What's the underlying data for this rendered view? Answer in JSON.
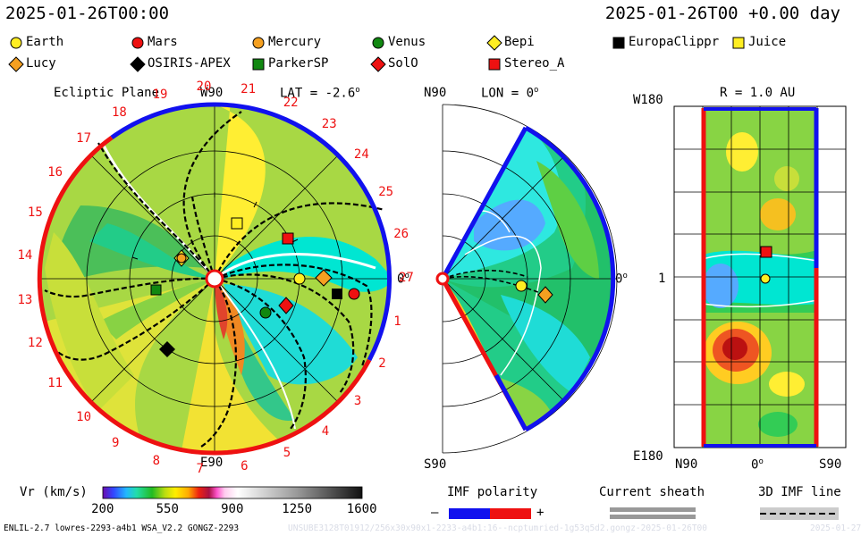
{
  "header": {
    "datetime": "2025-01-26T00:00",
    "relative": "2025-01-26T00 +0.00 day"
  },
  "legend": [
    {
      "name": "Earth",
      "marker": "circle",
      "color": "#ffee22"
    },
    {
      "name": "Mars",
      "marker": "circle",
      "color": "#ee1111"
    },
    {
      "name": "Mercury",
      "marker": "circle",
      "color": "#f5a020"
    },
    {
      "name": "Venus",
      "marker": "circle",
      "color": "#118811"
    },
    {
      "name": "Bepi",
      "marker": "diamond",
      "color": "#ffee22"
    },
    {
      "name": "EuropaClippr",
      "marker": "square",
      "color": "#000000"
    },
    {
      "name": "Juice",
      "marker": "square",
      "color": "#ffee22"
    },
    {
      "name": "Lucy",
      "marker": "diamond",
      "color": "#f5a020"
    },
    {
      "name": "OSIRIS-APEX",
      "marker": "diamond",
      "color": "#000000"
    },
    {
      "name": "ParkerSP",
      "marker": "square",
      "color": "#118811"
    },
    {
      "name": "SolO",
      "marker": "diamond",
      "color": "#ee1111"
    },
    {
      "name": "Stereo_A",
      "marker": "square",
      "color": "#ee1111"
    }
  ],
  "ecliptic": {
    "title": "Ecliptic Plane",
    "lat": "LAT = -2.6",
    "deg": "o",
    "top": "W90",
    "bottom": "E90",
    "right": "0",
    "rot_labels": [
      "1",
      "2",
      "3",
      "4",
      "5",
      "6",
      "7",
      "8",
      "9",
      "10",
      "11",
      "12",
      "13",
      "14",
      "15",
      "16",
      "17",
      "18",
      "19",
      "20",
      "21",
      "22",
      "23",
      "24",
      "25",
      "26",
      "27"
    ]
  },
  "meridional": {
    "top": "N90",
    "lon": "LON = 0",
    "deg": "o",
    "bottom": "S90",
    "right": "0"
  },
  "latlon": {
    "r": "R = 1.0 AU",
    "top": "W180",
    "mid": "1",
    "bottom": "E180",
    "x_left": "N90",
    "x_mid": "0",
    "x_right": "S90",
    "deg": "o"
  },
  "colorbar": {
    "label": "Vr (km/s)",
    "ticks": [
      "200",
      "550",
      "900",
      "1250",
      "1600"
    ]
  },
  "imf": {
    "title": "IMF polarity",
    "minus": "–",
    "plus": "+",
    "neg_color": "#1111ee",
    "pos_color": "#ee1111"
  },
  "sheath": {
    "title": "Current sheath"
  },
  "imfline": {
    "title": "3D IMF line"
  },
  "footer": {
    "left": "ENLIL-2.7 lowres-2293-a4b1 WSA_V2.2 GONGZ-2293",
    "right": "UNSUBE3128T01912/256x30x90x1-2233-a4b1:16--ncptumried-1g53q5d2.gongz-2025-01-26T00",
    "date": "2025-01-27"
  },
  "chart_data": [
    {
      "type": "heatmap",
      "title": "Ecliptic Plane",
      "quantity": "Vr (km/s)",
      "range": [
        200,
        1600
      ],
      "bodies": [
        "Earth",
        "Mars",
        "Mercury",
        "Venus",
        "Bepi",
        "EuropaClippr",
        "Juice",
        "Lucy",
        "OSIRIS-APEX",
        "ParkerSP",
        "SolO",
        "Stereo_A"
      ]
    },
    {
      "type": "heatmap",
      "title": "LON = 0",
      "quantity": "Vr (km/s)",
      "bodies": [
        "Earth",
        "Lucy"
      ]
    },
    {
      "type": "heatmap",
      "title": "R = 1.0 AU",
      "quantity": "Vr (km/s)",
      "bodies": [
        "Earth",
        "Stereo_A"
      ]
    }
  ]
}
